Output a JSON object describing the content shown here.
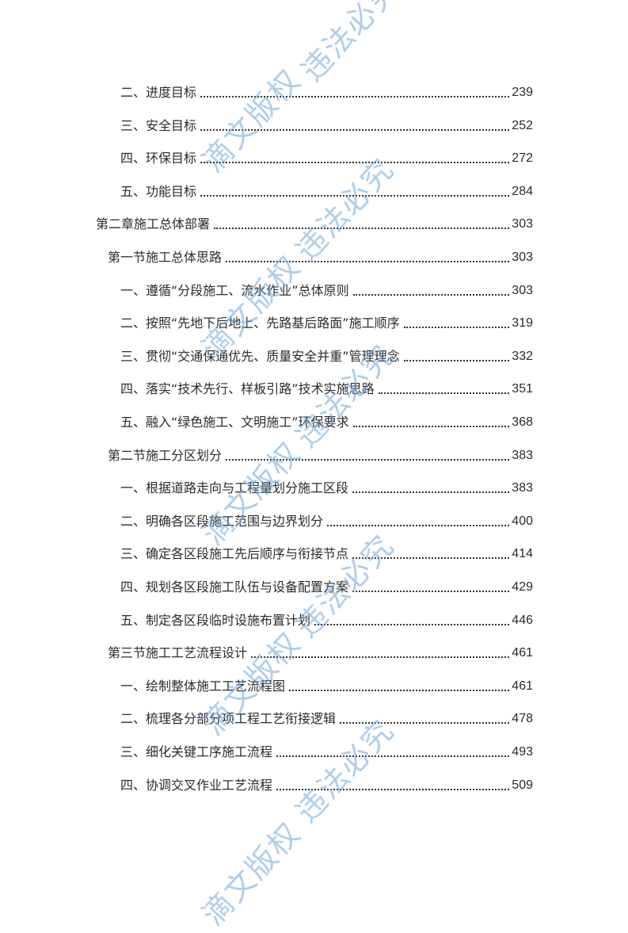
{
  "toc": [
    {
      "level": 2,
      "title": "二、进度目标",
      "page": "239"
    },
    {
      "level": 2,
      "title": "三、安全目标",
      "page": "252"
    },
    {
      "level": 2,
      "title": "四、环保目标",
      "page": "272"
    },
    {
      "level": 2,
      "title": "五、功能目标",
      "page": "284"
    },
    {
      "level": 0,
      "title": "第二章施工总体部署",
      "page": "303"
    },
    {
      "level": 1,
      "title": "第一节施工总体思路",
      "page": "303"
    },
    {
      "level": 2,
      "title": "一、遵循“分段施工、流水作业”总体原则",
      "page": "303"
    },
    {
      "level": 2,
      "title": "二、按照“先地下后地上、先路基后路面”施工顺序",
      "page": "319"
    },
    {
      "level": 2,
      "title": "三、贯彻“交通保通优先、质量安全并重”管理理念",
      "page": "332"
    },
    {
      "level": 2,
      "title": "四、落实“技术先行、样板引路”技术实施思路",
      "page": "351"
    },
    {
      "level": 2,
      "title": "五、融入“绿色施工、文明施工”环保要求",
      "page": "368"
    },
    {
      "level": 1,
      "title": "第二节施工分区划分",
      "page": "383"
    },
    {
      "level": 2,
      "title": "一、根据道路走向与工程量划分施工区段",
      "page": "383"
    },
    {
      "level": 2,
      "title": "二、明确各区段施工范围与边界划分",
      "page": "400"
    },
    {
      "level": 2,
      "title": "三、确定各区段施工先后顺序与衔接节点",
      "page": "414"
    },
    {
      "level": 2,
      "title": "四、规划各区段施工队伍与设备配置方案",
      "page": "429"
    },
    {
      "level": 2,
      "title": "五、制定各区段临时设施布置计划",
      "page": "446"
    },
    {
      "level": 1,
      "title": "第三节施工工艺流程设计",
      "page": "461"
    },
    {
      "level": 2,
      "title": "一、绘制整体施工工艺流程图",
      "page": "461"
    },
    {
      "level": 2,
      "title": "二、梳理各分部分项工程工艺衔接逻辑",
      "page": "478"
    },
    {
      "level": 2,
      "title": "三、细化关键工序施工流程",
      "page": "493"
    },
    {
      "level": 2,
      "title": "四、协调交叉作业工艺流程",
      "page": "509"
    }
  ],
  "watermark": {
    "text_a": "滴文版权",
    "text_b": "违法必究",
    "color": "#6ea5dc"
  }
}
